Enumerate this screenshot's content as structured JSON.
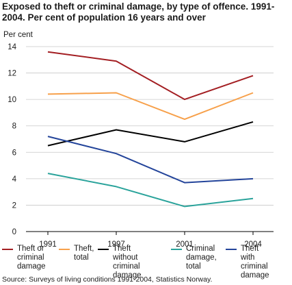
{
  "title": "Exposed to theft or criminal damage, by type of offence. 1991-2004. Per cent of population 16 years and over",
  "unit_label": "Per cent",
  "source": "Source: Surveys of living conditions 1991-2004, Statistics Norway.",
  "chart_data": {
    "type": "line",
    "x": [
      "1991",
      "1997",
      "2001",
      "2004"
    ],
    "ylim": [
      0,
      14
    ],
    "yticks": [
      0,
      2,
      4,
      6,
      8,
      10,
      12,
      14
    ],
    "grid": true,
    "legend_position": "bottom",
    "series": [
      {
        "name": "Theft or\ncriminal\ndamage",
        "color": "#a31e22",
        "values": [
          13.6,
          12.9,
          10.0,
          11.8
        ]
      },
      {
        "name": "Theft,\ntotal",
        "color": "#f7a04a",
        "values": [
          10.4,
          10.5,
          8.5,
          10.5
        ]
      },
      {
        "name": "Theft without\ncriminal damage",
        "color": "#000000",
        "values": [
          6.5,
          7.7,
          6.8,
          8.3
        ]
      },
      {
        "name": "Criminal\ndamage,\ntotal",
        "color": "#2aa39b",
        "values": [
          4.4,
          3.4,
          1.9,
          2.5
        ]
      },
      {
        "name": "Theft with\ncriminal\ndamage",
        "color": "#23449a",
        "values": [
          7.2,
          5.9,
          3.7,
          4.0
        ]
      }
    ]
  }
}
